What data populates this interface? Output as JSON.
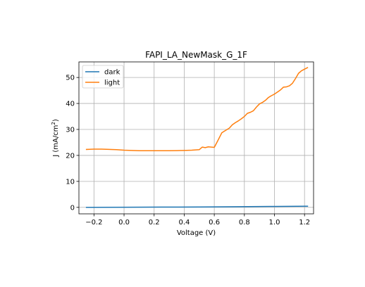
{
  "chart_data": {
    "type": "line",
    "title": "FAPI_LA_NewMask_G_1F",
    "xlabel": "Voltage (V)",
    "ylabel_main": "J (mA/cm",
    "ylabel_sup": "2",
    "ylabel_close": ")",
    "xlim": [
      -0.3,
      1.26
    ],
    "ylim": [
      -2.5,
      56
    ],
    "xticks": [
      -0.2,
      0.0,
      0.2,
      0.4,
      0.6,
      0.8,
      1.0,
      1.2
    ],
    "xtick_labels": [
      "−0.2",
      "0.0",
      "0.2",
      "0.4",
      "0.6",
      "0.8",
      "1.0",
      "1.2"
    ],
    "yticks": [
      0,
      10,
      20,
      30,
      40,
      50
    ],
    "ytick_labels": [
      "0",
      "10",
      "20",
      "30",
      "40",
      "50"
    ],
    "grid": true,
    "legend_position": "upper-left",
    "series": [
      {
        "name": "dark",
        "color": "#1f77b4",
        "points": [
          [
            -0.25,
            0.0
          ],
          [
            0.0,
            0.05
          ],
          [
            0.25,
            0.1
          ],
          [
            0.5,
            0.15
          ],
          [
            0.75,
            0.25
          ],
          [
            1.0,
            0.35
          ],
          [
            1.22,
            0.45
          ]
        ]
      },
      {
        "name": "light",
        "color": "#ff7f0e",
        "points": [
          [
            -0.25,
            22.3
          ],
          [
            -0.2,
            22.4
          ],
          [
            -0.15,
            22.4
          ],
          [
            -0.1,
            22.3
          ],
          [
            -0.05,
            22.2
          ],
          [
            0.0,
            22.0
          ],
          [
            0.05,
            21.9
          ],
          [
            0.1,
            21.8
          ],
          [
            0.15,
            21.8
          ],
          [
            0.2,
            21.8
          ],
          [
            0.25,
            21.8
          ],
          [
            0.3,
            21.8
          ],
          [
            0.35,
            21.85
          ],
          [
            0.4,
            21.9
          ],
          [
            0.45,
            22.0
          ],
          [
            0.5,
            22.2
          ],
          [
            0.52,
            23.2
          ],
          [
            0.54,
            23.0
          ],
          [
            0.56,
            23.3
          ],
          [
            0.58,
            23.2
          ],
          [
            0.6,
            23.1
          ],
          [
            0.62,
            25.3
          ],
          [
            0.65,
            28.7
          ],
          [
            0.68,
            29.8
          ],
          [
            0.7,
            30.5
          ],
          [
            0.72,
            31.8
          ],
          [
            0.74,
            32.6
          ],
          [
            0.76,
            33.3
          ],
          [
            0.78,
            34.1
          ],
          [
            0.8,
            35.0
          ],
          [
            0.82,
            36.2
          ],
          [
            0.84,
            36.6
          ],
          [
            0.86,
            37.2
          ],
          [
            0.88,
            38.6
          ],
          [
            0.9,
            39.8
          ],
          [
            0.92,
            40.4
          ],
          [
            0.94,
            41.2
          ],
          [
            0.96,
            42.3
          ],
          [
            0.98,
            43.0
          ],
          [
            1.0,
            43.6
          ],
          [
            1.02,
            44.4
          ],
          [
            1.04,
            45.2
          ],
          [
            1.06,
            46.3
          ],
          [
            1.08,
            46.4
          ],
          [
            1.1,
            46.8
          ],
          [
            1.12,
            47.8
          ],
          [
            1.14,
            49.6
          ],
          [
            1.16,
            51.6
          ],
          [
            1.18,
            52.6
          ],
          [
            1.2,
            53.2
          ],
          [
            1.22,
            53.8
          ]
        ]
      }
    ]
  }
}
